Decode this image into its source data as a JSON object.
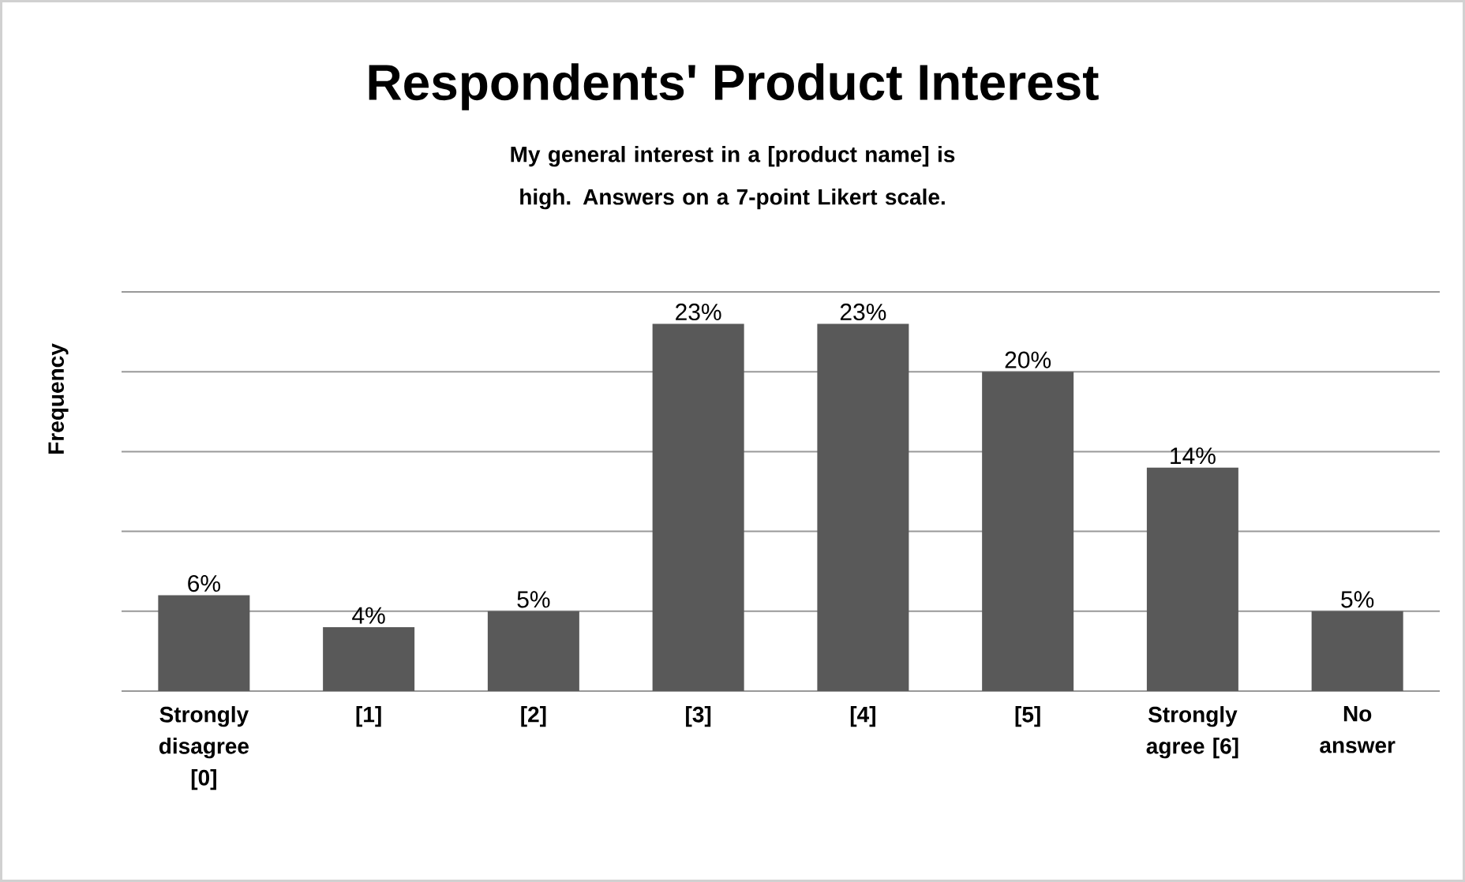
{
  "chart_data": {
    "type": "bar",
    "title": "Respondents' Product Interest",
    "subtitle": "My general interest in a [product name] is high. Answers on a 7-point Likert scale.",
    "ylabel": "Frequency",
    "categories": [
      "Strongly disagree [0]",
      "[1]",
      "[2]",
      "[3]",
      "[4]",
      "[5]",
      "Strongly agree [6]",
      "No answer"
    ],
    "values": [
      6,
      4,
      5,
      23,
      23,
      20,
      14,
      5
    ],
    "value_labels": [
      "6%",
      "4%",
      "5%",
      "23%",
      "23%",
      "20%",
      "14%",
      "5%"
    ],
    "color": "#595959",
    "ylim": [
      0,
      25
    ],
    "yticks": [
      {
        "value": 0,
        "label": null
      },
      {
        "value": 5,
        "label": null
      },
      {
        "value": 10,
        "label": null
      },
      {
        "value": 15,
        "label": null
      },
      {
        "value": 20,
        "label": null
      },
      {
        "value": 25,
        "label": null
      }
    ],
    "tick_labels": "x",
    "grid": "y"
  }
}
